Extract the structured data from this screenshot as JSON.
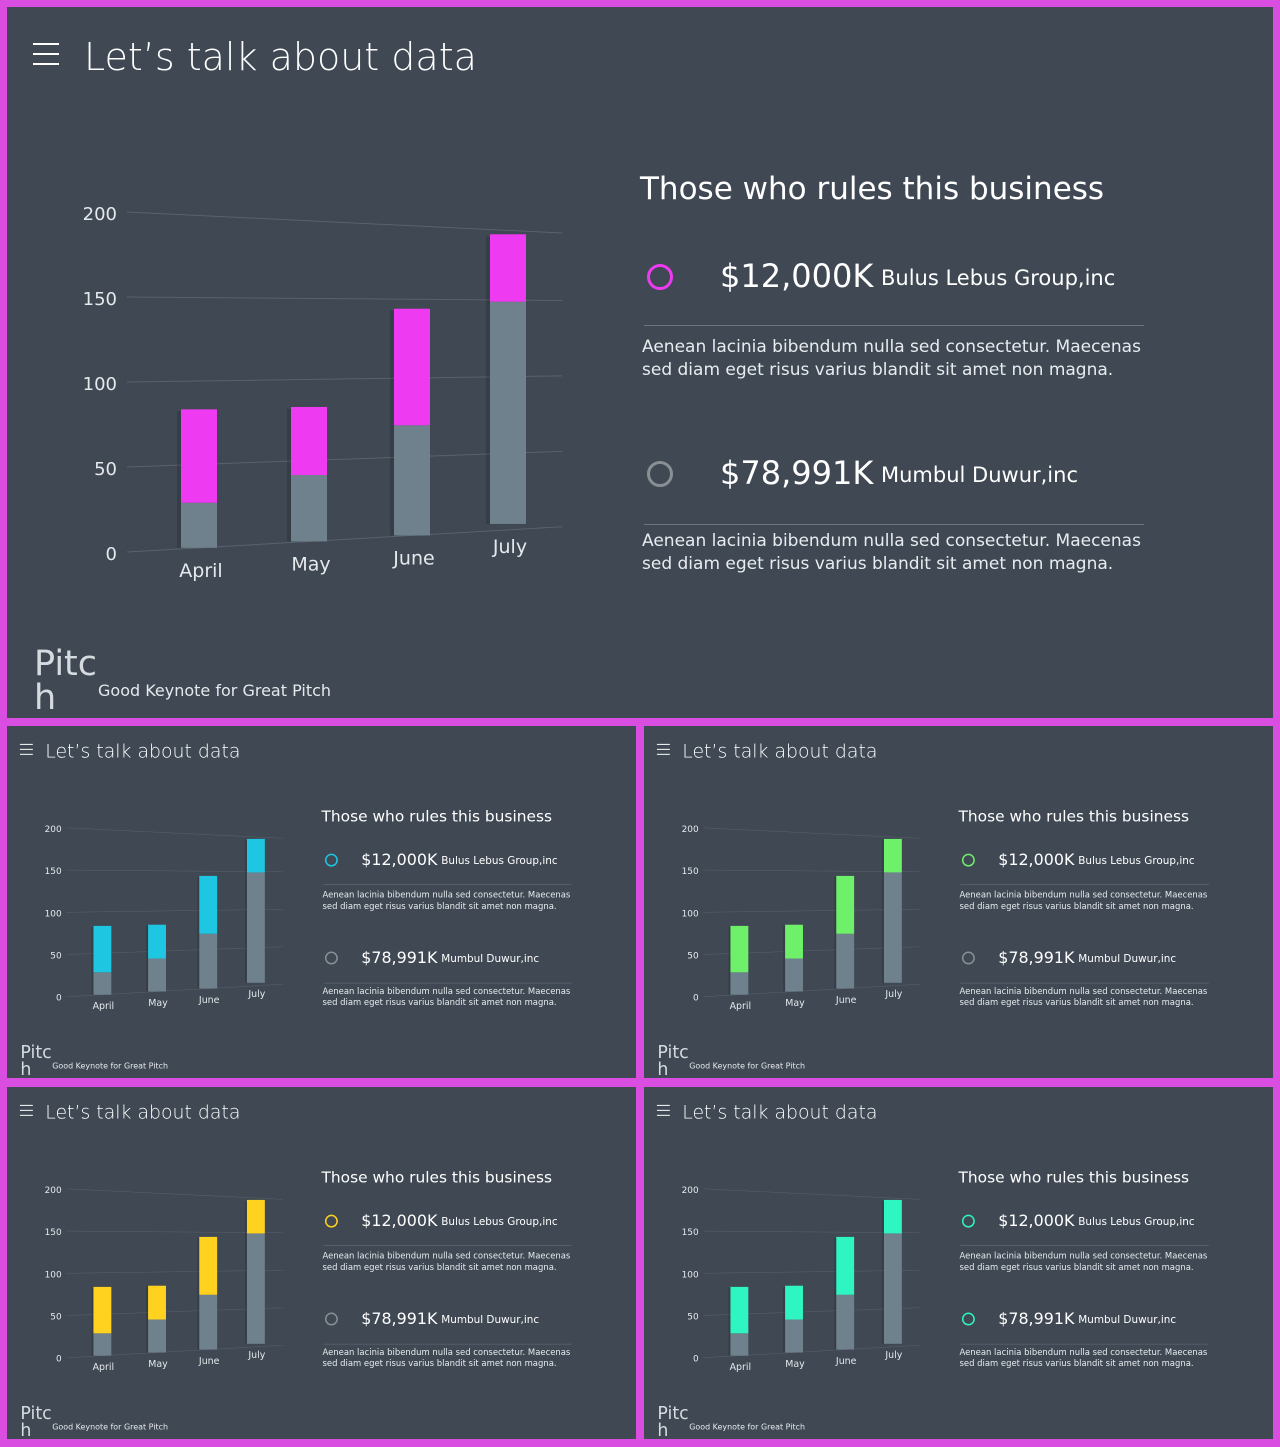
{
  "title": "Let’s talk about data",
  "heading": "Those who rules this business",
  "entries": [
    {
      "amount": "$12,000K",
      "company": "Bulus Lebus Group,inc",
      "description": "Aenean lacinia bibendum nulla sed consectetur. Maecenas sed diam eget risus varius blandit sit amet non magna."
    },
    {
      "amount": "$78,991K",
      "company": "Mumbul Duwur,inc",
      "description": "Aenean lacinia bibendum nulla sed consectetur. Maecenas sed diam eget risus varius blandit sit amet non magna."
    }
  ],
  "brand": "Pitch",
  "tagline": "Good Keynote for Great Pitch",
  "chart_data": {
    "type": "bar",
    "stacked": true,
    "categories": [
      "April",
      "May",
      "June",
      "July"
    ],
    "series": [
      {
        "values": [
          27,
          41,
          70,
          145
        ]
      },
      {
        "values": [
          56,
          42,
          74,
          44
        ]
      }
    ],
    "ylim": [
      0,
      200
    ],
    "yticks": [
      0,
      50,
      100,
      150,
      200
    ],
    "grid": true,
    "legend": "none"
  },
  "slides": [
    {
      "id": "slide-main",
      "accent": "#ee3af0",
      "neutral_circle": "#8a8f94"
    },
    {
      "id": "slide-1",
      "accent": "#1fc6e2",
      "neutral_circle": "#8a8f94"
    },
    {
      "id": "slide-2",
      "accent": "#6ef06a",
      "neutral_circle": "#8a8f94"
    },
    {
      "id": "slide-3",
      "accent": "#ffd21f",
      "neutral_circle": "#8a8f94"
    },
    {
      "id": "slide-4",
      "accent": "#2ff5c2",
      "neutral_circle": "#2ff5c2"
    }
  ]
}
